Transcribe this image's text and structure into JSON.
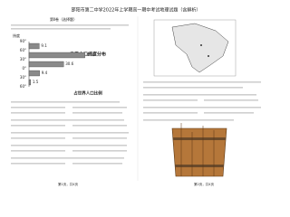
{
  "header": {
    "title": "邵阳市第二中学2022年上学期高一期中考试地理试题（含解析）"
  },
  "section": "第Ⅱ卷（选择题）",
  "figure": {
    "title": "世界人口纬度分布",
    "axis_label": "纬度",
    "lat_labels": [
      "90°",
      "60°",
      "30°",
      "0°",
      "30°",
      "60°"
    ],
    "values": [
      9.1,
      49.4,
      30.6,
      9.4,
      1.5
    ],
    "caption": "占世界人口比例"
  },
  "footer": {
    "left": "第1页，共4页",
    "right": "第2页，共4页"
  }
}
